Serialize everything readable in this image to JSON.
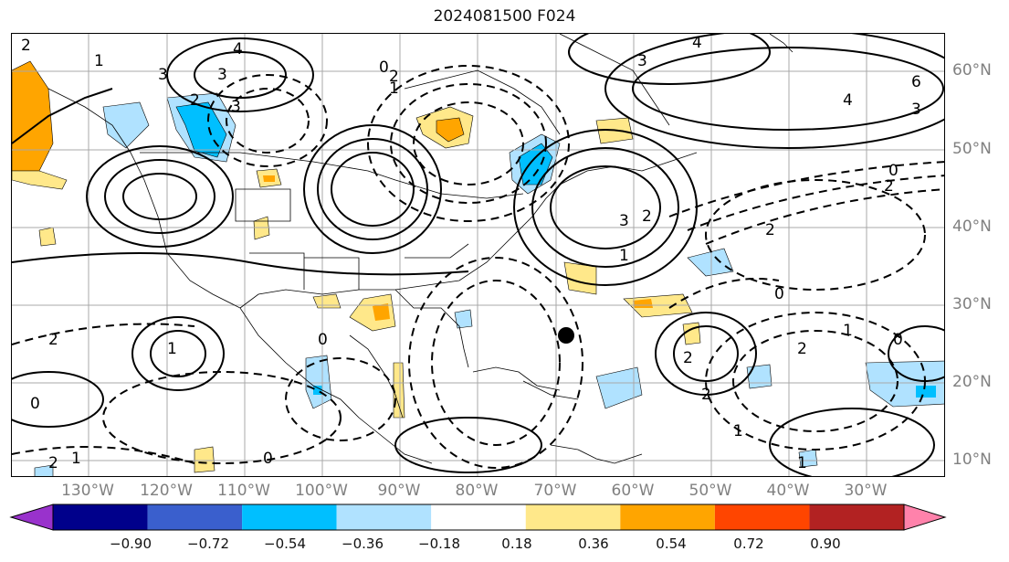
{
  "title": "2024081500 F024",
  "lon_labels": [
    "130°W",
    "120°W",
    "110°W",
    "100°W",
    "90°W",
    "80°W",
    "70°W",
    "60°W",
    "50°W",
    "40°W",
    "30°W"
  ],
  "lat_labels": [
    "60°N",
    "50°N",
    "40°N",
    "30°N",
    "20°N",
    "10°N"
  ],
  "colorbar": {
    "colors": [
      "#9932cc",
      "#00008b",
      "#3a5fcd",
      "#00bfff",
      "#b0e2ff",
      "#ffffff",
      "#ffe88a",
      "#ffa500",
      "#ff4500",
      "#b22222",
      "#ff82ab"
    ],
    "ticks": [
      "−0.90",
      "−0.72",
      "−0.54",
      "−0.36",
      "−0.18",
      "0.18",
      "0.36",
      "0.54",
      "0.72",
      "0.90"
    ]
  },
  "contour_labels": [
    "2",
    "1",
    "3",
    "4",
    "3",
    "2",
    "3",
    "0",
    "1",
    "2",
    "4",
    "3",
    "6",
    "4",
    "3",
    "0",
    "2",
    "2",
    "1",
    "3",
    "2",
    "0",
    "0",
    "1",
    "2",
    "1",
    "0",
    "2",
    "1",
    "0",
    "2",
    "1",
    "2",
    "0",
    "2",
    "1"
  ]
}
